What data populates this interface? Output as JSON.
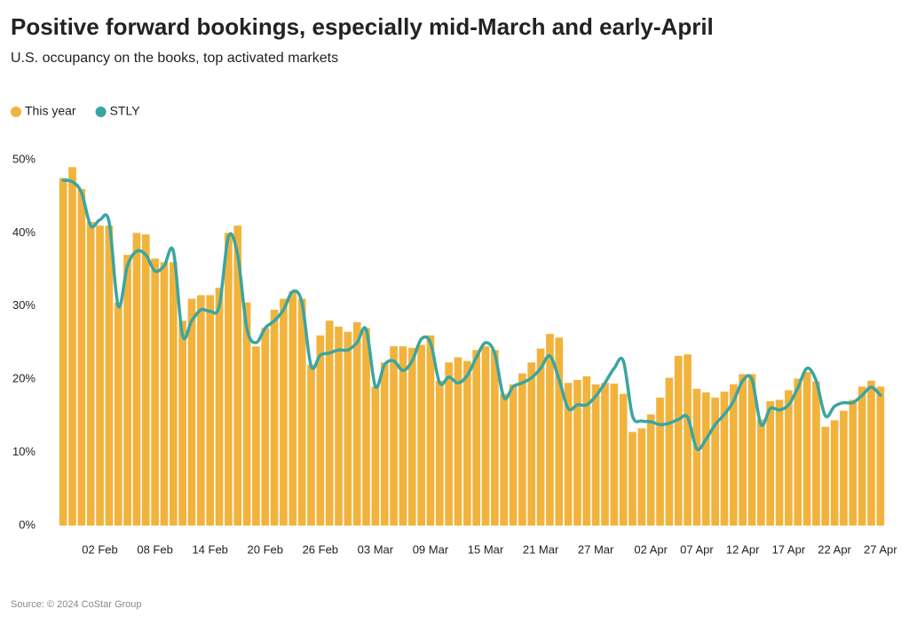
{
  "chart_data": {
    "type": "bar-line",
    "title": "Positive forward bookings, especially mid-March and early-April",
    "subtitle": "U.S. occupancy on the books, top activated markets",
    "source": "Source: © 2024 CoStar Group",
    "categories": [
      null,
      null,
      null,
      null,
      "02 Feb",
      null,
      null,
      null,
      null,
      null,
      "08 Feb",
      null,
      null,
      null,
      null,
      null,
      "14 Feb",
      null,
      null,
      null,
      null,
      null,
      "20 Feb",
      null,
      null,
      null,
      null,
      null,
      "26 Feb",
      null,
      null,
      null,
      null,
      null,
      "03 Mar",
      null,
      null,
      null,
      null,
      null,
      "09 Mar",
      null,
      null,
      null,
      null,
      null,
      "15 Mar",
      null,
      null,
      null,
      null,
      null,
      "21 Mar",
      null,
      null,
      null,
      null,
      null,
      "27 Mar",
      null,
      null,
      null,
      null,
      null,
      "02 Apr",
      null,
      null,
      null,
      null,
      "07 Apr",
      null,
      null,
      null,
      null,
      "12 Apr",
      null,
      null,
      null,
      null,
      "17 Apr",
      null,
      null,
      null,
      null,
      "22 Apr",
      null,
      null,
      null,
      null,
      "27 Apr"
    ],
    "series": [
      {
        "name": "This year",
        "type": "bar",
        "color": "#f2b33d",
        "values": [
          47.5,
          49,
          46,
          41.5,
          41,
          41,
          30.5,
          37,
          40,
          39.8,
          36.5,
          36,
          36,
          28,
          31,
          31.5,
          31.5,
          32.5,
          40,
          41,
          30.5,
          24.5,
          27,
          29.5,
          31,
          32,
          31,
          22,
          26,
          28,
          27.2,
          26.5,
          27.8,
          27,
          19,
          22.3,
          24.5,
          24.5,
          24.3,
          24.7,
          26,
          19.8,
          22.3,
          23,
          22.5,
          24,
          24.5,
          24,
          18,
          19.3,
          20.8,
          22.3,
          24.2,
          26.2,
          25.7,
          19.5,
          19.9,
          20.4,
          19.3,
          19.5,
          19.4,
          18,
          12.8,
          13.3,
          15.2,
          17.5,
          20.2,
          23.2,
          23.4,
          18.7,
          18.2,
          17.5,
          18.3,
          19.3,
          20.7,
          20.7,
          14.5,
          17,
          17.2,
          18.5,
          20.1,
          21,
          19.7,
          13.5,
          14.4,
          15.7,
          17.2,
          19,
          19.8,
          19
        ]
      },
      {
        "name": "STLY",
        "type": "line",
        "color": "#3aa5a0",
        "values": [
          47.2,
          47,
          45.5,
          41,
          41.8,
          41.5,
          30,
          35.5,
          37.5,
          37,
          34.8,
          35.5,
          37.5,
          26,
          28,
          29.5,
          29.3,
          30,
          39.5,
          37,
          27,
          25,
          27,
          28,
          29.5,
          32,
          30.5,
          21.8,
          23.3,
          23.6,
          24,
          24,
          25,
          26.8,
          19,
          22,
          22.5,
          21.2,
          22.5,
          25.5,
          25,
          19.5,
          20.3,
          19.5,
          20.5,
          23,
          25,
          23.5,
          17.5,
          19,
          19.5,
          20.2,
          21.5,
          23.2,
          20,
          16,
          16.5,
          16.5,
          17.7,
          19.5,
          21.5,
          22.5,
          15,
          14.3,
          14.2,
          13.8,
          14,
          14.5,
          14.8,
          10.5,
          11.8,
          13.8,
          15.2,
          17,
          19.8,
          20,
          13.8,
          16,
          15.8,
          16.5,
          18.8,
          21.5,
          19.8,
          15,
          16.3,
          16.8,
          16.8,
          17.8,
          18.9,
          17.8
        ]
      }
    ],
    "ylim": [
      0,
      50
    ],
    "yticks": [
      {
        "value": 0,
        "label": "0%"
      },
      {
        "value": 10,
        "label": "10%"
      },
      {
        "value": 20,
        "label": "20%"
      },
      {
        "value": 30,
        "label": "30%"
      },
      {
        "value": 40,
        "label": "40%"
      },
      {
        "value": 50,
        "label": "50%"
      }
    ],
    "legend": "top-left"
  }
}
